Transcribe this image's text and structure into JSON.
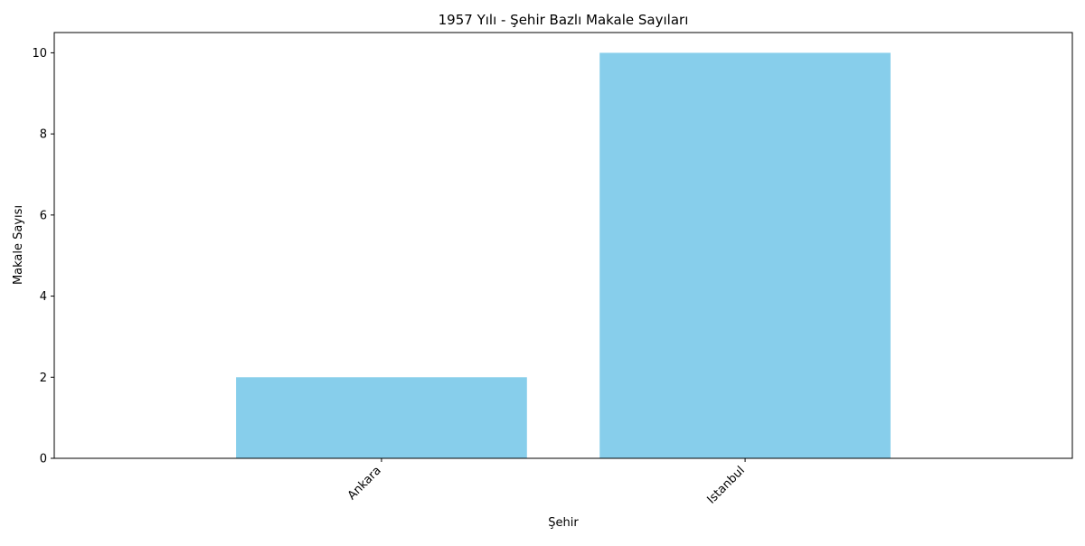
{
  "chart_data": {
    "type": "bar",
    "title": "1957 Yılı - Şehir Bazlı Makale Sayıları",
    "xlabel": "Şehir",
    "ylabel": "Makale Sayısı",
    "categories": [
      "Ankara",
      "Istanbul"
    ],
    "values": [
      2,
      10
    ],
    "ylim": [
      0,
      10.5
    ],
    "yticks": [
      0,
      2,
      4,
      6,
      8,
      10
    ],
    "grid": false,
    "bar_color": "#87CEEB"
  }
}
